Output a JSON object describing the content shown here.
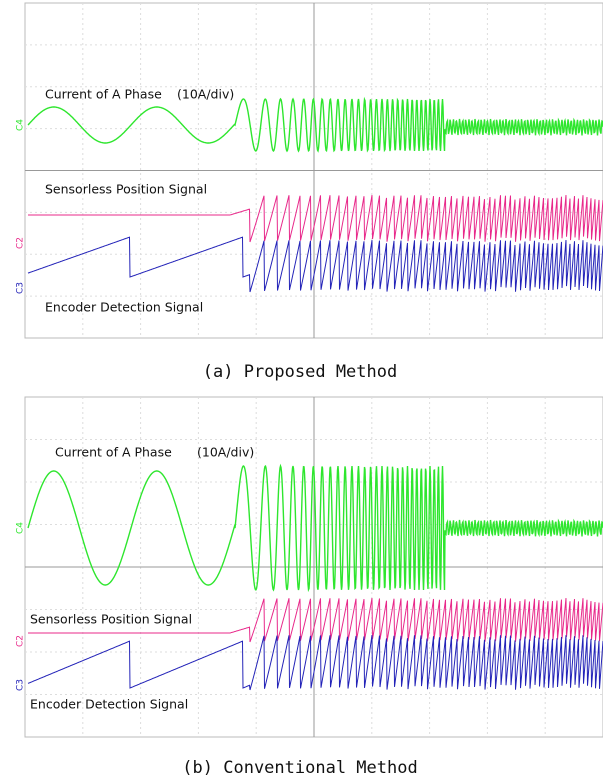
{
  "panels": [
    {
      "labels": {
        "current": "Current of A Phase",
        "scale": "(10A/div)",
        "sensorless": "Sensorless Position Signal",
        "encoder": "Encoder Detection Signal"
      },
      "channels": [
        "C4",
        "C2",
        "C3"
      ],
      "caption": "(a) Proposed Method"
    },
    {
      "labels": {
        "current": "Current of A Phase",
        "scale": "(10A/div)",
        "sensorless": "Sensorless Position Signal",
        "encoder": "Encoder Detection Signal"
      },
      "channels": [
        "C4",
        "C2",
        "C3"
      ],
      "caption": "(b) Conventional Method"
    }
  ]
}
